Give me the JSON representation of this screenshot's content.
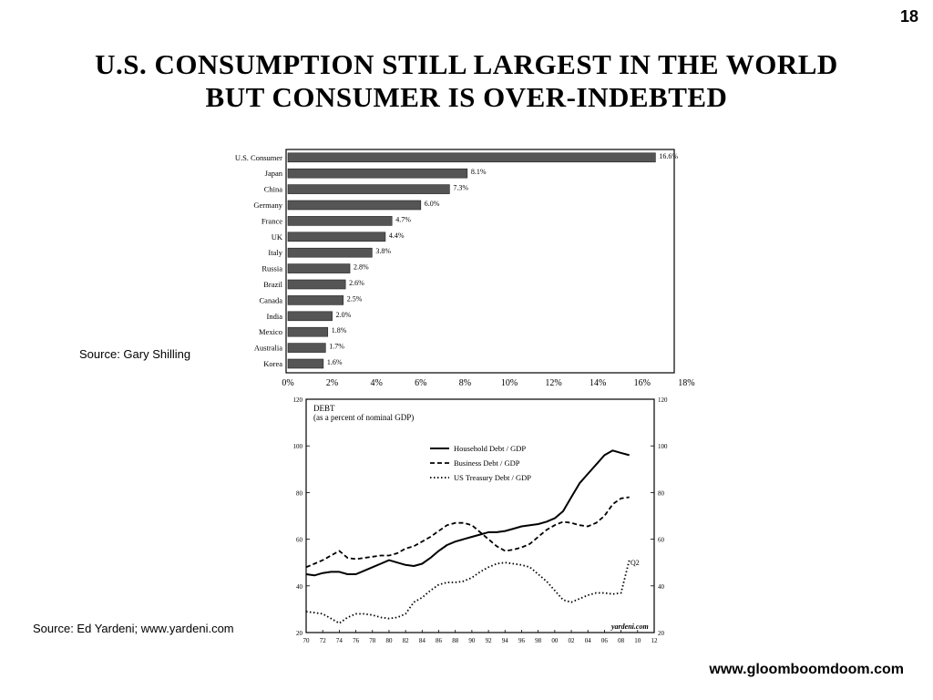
{
  "page": {
    "number": "18",
    "title_line1": "U.S.  CONSUMPTION  STILL  LARGEST  IN  THE  WORLD",
    "title_line2": "BUT  CONSUMER  IS  OVER-INDEBTED",
    "website": "www.gloomboomdoom.com"
  },
  "sources": {
    "bar_chart": "Source: Gary Shilling",
    "line_chart": "Source: Ed Yardeni; www.yardeni.com"
  },
  "colors": {
    "text": "#000000",
    "bar_fill": "#555555",
    "frame": "#000000",
    "background": "#ffffff"
  },
  "chart_data": [
    {
      "type": "bar",
      "orientation": "horizontal",
      "categories": [
        "U.S. Consumer",
        "Japan",
        "China",
        "Germany",
        "France",
        "UK",
        "Italy",
        "Russia",
        "Brazil",
        "Canada",
        "India",
        "Mexico",
        "Australia",
        "Korea"
      ],
      "values": [
        16.6,
        8.1,
        7.3,
        6.0,
        4.7,
        4.4,
        3.8,
        2.8,
        2.6,
        2.5,
        2.0,
        1.8,
        1.7,
        1.6
      ],
      "value_labels": [
        "16.6%",
        "8.1%",
        "7.3%",
        "6.0%",
        "4.7%",
        "4.4%",
        "3.8%",
        "2.8%",
        "2.6%",
        "2.5%",
        "2.0%",
        "1.8%",
        "1.7%",
        "1.6%"
      ],
      "xticks": [
        "0%",
        "2%",
        "4%",
        "6%",
        "8%",
        "10%",
        "12%",
        "14%",
        "16%",
        "18%"
      ],
      "xlim": [
        0,
        18
      ],
      "grid": false
    },
    {
      "type": "line",
      "title": "DEBT",
      "subtitle": "(as a percent of nominal GDP)",
      "watermark": "yardeni.com",
      "annotation": "Q2",
      "xticks": [
        "70",
        "72",
        "74",
        "76",
        "78",
        "80",
        "82",
        "84",
        "86",
        "88",
        "90",
        "92",
        "94",
        "96",
        "98",
        "00",
        "02",
        "04",
        "06",
        "08",
        "10",
        "12"
      ],
      "yticks": [
        20,
        40,
        60,
        80,
        100,
        120
      ],
      "ylim": [
        20,
        120
      ],
      "xlim": [
        1970,
        2012
      ],
      "legend_position": "top-center",
      "grid": false,
      "series": [
        {
          "name": "Household Debt / GDP",
          "style": "solid",
          "x": [
            1970,
            1971,
            1972,
            1973,
            1974,
            1975,
            1976,
            1977,
            1978,
            1979,
            1980,
            1981,
            1982,
            1983,
            1984,
            1985,
            1986,
            1987,
            1988,
            1989,
            1990,
            1991,
            1992,
            1993,
            1994,
            1995,
            1996,
            1997,
            1998,
            1999,
            2000,
            2001,
            2002,
            2003,
            2004,
            2005,
            2006,
            2007,
            2008,
            2009
          ],
          "values": [
            45,
            44.5,
            45.5,
            46,
            46,
            45,
            45,
            46.5,
            48,
            49.5,
            51,
            50,
            49,
            48.5,
            49.5,
            52,
            55,
            57.5,
            59,
            60,
            61,
            62,
            63,
            63,
            63.5,
            64.5,
            65.5,
            66,
            66.5,
            67.5,
            69,
            72,
            78,
            84,
            88,
            92,
            96,
            98,
            97,
            96
          ]
        },
        {
          "name": "Business Debt / GDP",
          "style": "dashed",
          "x": [
            1970,
            1971,
            1972,
            1973,
            1974,
            1975,
            1976,
            1977,
            1978,
            1979,
            1980,
            1981,
            1982,
            1983,
            1984,
            1985,
            1986,
            1987,
            1988,
            1989,
            1990,
            1991,
            1992,
            1993,
            1994,
            1995,
            1996,
            1997,
            1998,
            1999,
            2000,
            2001,
            2002,
            2003,
            2004,
            2005,
            2006,
            2007,
            2008,
            2009
          ],
          "values": [
            48,
            49.5,
            51,
            53,
            55,
            52,
            51.5,
            52,
            52.5,
            53,
            53,
            54,
            56,
            57,
            59,
            61,
            63.5,
            66,
            67,
            67,
            66,
            63,
            60,
            57,
            55,
            55.5,
            56.5,
            58,
            61,
            64,
            66,
            67.5,
            67,
            66,
            65.5,
            67,
            70,
            75,
            77.5,
            78
          ]
        },
        {
          "name": "US Treasury Debt / GDP",
          "style": "dotted",
          "x": [
            1970,
            1971,
            1972,
            1973,
            1974,
            1975,
            1976,
            1977,
            1978,
            1979,
            1980,
            1981,
            1982,
            1983,
            1984,
            1985,
            1986,
            1987,
            1988,
            1989,
            1990,
            1991,
            1992,
            1993,
            1994,
            1995,
            1996,
            1997,
            1998,
            1999,
            2000,
            2001,
            2002,
            2003,
            2004,
            2005,
            2006,
            2007,
            2008,
            2009
          ],
          "values": [
            29,
            28.5,
            28,
            26,
            24,
            26.5,
            28,
            28,
            27.5,
            26.5,
            26,
            26.5,
            28,
            33,
            35,
            38,
            40.5,
            41.5,
            41.5,
            42,
            43.5,
            46,
            48,
            49.5,
            50,
            49.5,
            49,
            48,
            45,
            42,
            38,
            34,
            33,
            34.5,
            36,
            37,
            37,
            36.5,
            37,
            51
          ]
        }
      ]
    }
  ]
}
